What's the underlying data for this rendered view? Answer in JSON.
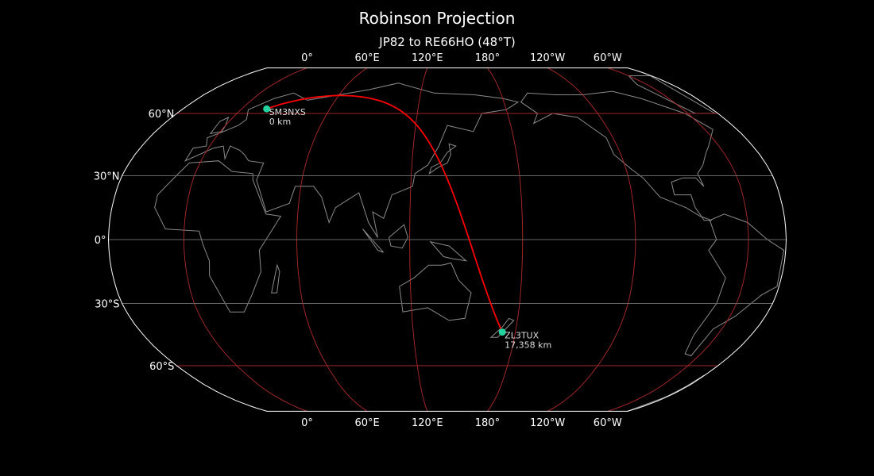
{
  "title": "Robinson Projection",
  "subtitle": "JP82 to RE66HO (48°T)",
  "projection": {
    "type": "robinson",
    "central_meridian": 140
  },
  "lon_labels": [
    {
      "lon": 0,
      "text": "0°"
    },
    {
      "lon": 60,
      "text": "60°E"
    },
    {
      "lon": 120,
      "text": "120°E"
    },
    {
      "lon": 180,
      "text": "180°"
    },
    {
      "lon": -120,
      "text": "120°W"
    },
    {
      "lon": -60,
      "text": "60°W"
    }
  ],
  "lat_labels": [
    {
      "lat": 60,
      "text": "60°N"
    },
    {
      "lat": 30,
      "text": "30°N"
    },
    {
      "lat": 0,
      "text": "0°"
    },
    {
      "lat": -30,
      "text": "30°S"
    },
    {
      "lat": -60,
      "text": "60°S"
    }
  ],
  "stations": [
    {
      "call": "SM3NXS",
      "distance": "0 km",
      "lat": 62.4,
      "lon": 17.0
    },
    {
      "call": "ZL3TUX",
      "distance": "17,358 km",
      "lat": -43.5,
      "lon": 172.3
    }
  ],
  "colors": {
    "background": "#000000",
    "coastline": "#8a8a8a",
    "meridian": "#b02a2a",
    "parallel": "#666666",
    "path": "#ff0000",
    "marker": "#22d3a0",
    "outline": "#ffffff"
  }
}
